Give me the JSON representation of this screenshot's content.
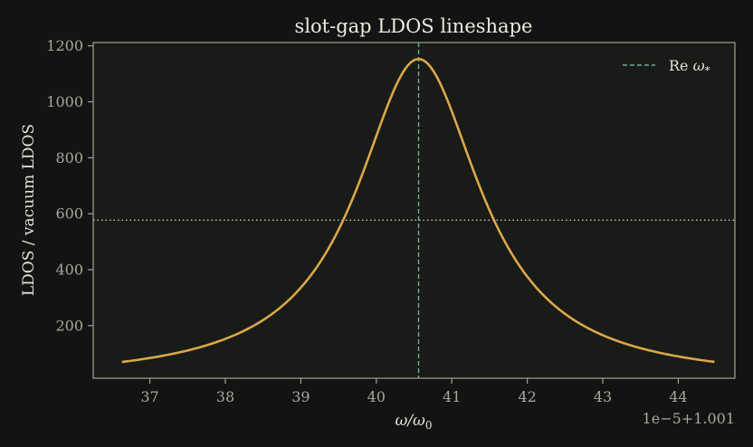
{
  "chart_data": {
    "type": "line",
    "title": "slot-gap LDOS lineshape",
    "xlabel": "ω/ω₀",
    "ylabel": "LDOS / vacuum LDOS",
    "axis_offset_label": "1e−5+1.001",
    "x_offset": 1.001,
    "x_scale": 1e-05,
    "xlim": [
      36.25,
      44.75
    ],
    "ylim": [
      12,
      1212
    ],
    "xticks": [
      37,
      38,
      39,
      40,
      41,
      42,
      43,
      44
    ],
    "yticks": [
      200,
      400,
      600,
      800,
      1000,
      1200
    ],
    "grid": false,
    "legend": {
      "placement": "top-right",
      "entries": [
        "Re ω*"
      ]
    },
    "series": [
      {
        "type": "lorentzian",
        "center_x": 40.56,
        "peak_y": 1153,
        "half_width_x": 1.0,
        "x_range": [
          36.63,
          44.48
        ],
        "color": "#dba74a"
      }
    ],
    "reference_lines": {
      "vertical": {
        "label": "Re ω*",
        "x": 40.56,
        "style": "dashed",
        "color": "#6fae99"
      },
      "horizontal": {
        "y": 577,
        "style": "dotted",
        "color": "#c9c7b8"
      }
    }
  }
}
